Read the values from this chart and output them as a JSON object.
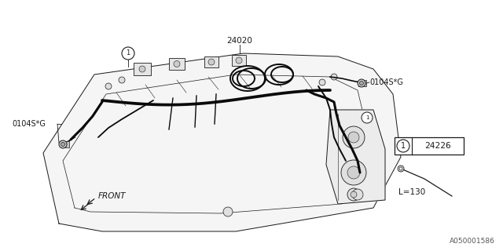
{
  "background_color": "#ffffff",
  "line_color": "#1a1a1a",
  "wire_color": "#0a0a0a",
  "label_24020": "24020",
  "label_24226": "24226",
  "label_0104S_G_left": "0104S*G",
  "label_0104S_G_right": "0104S*G",
  "label_front": "FRONT",
  "label_L130": "L=130",
  "watermark": "A050001586",
  "fig_width": 6.4,
  "fig_height": 3.2,
  "dpi": 100
}
